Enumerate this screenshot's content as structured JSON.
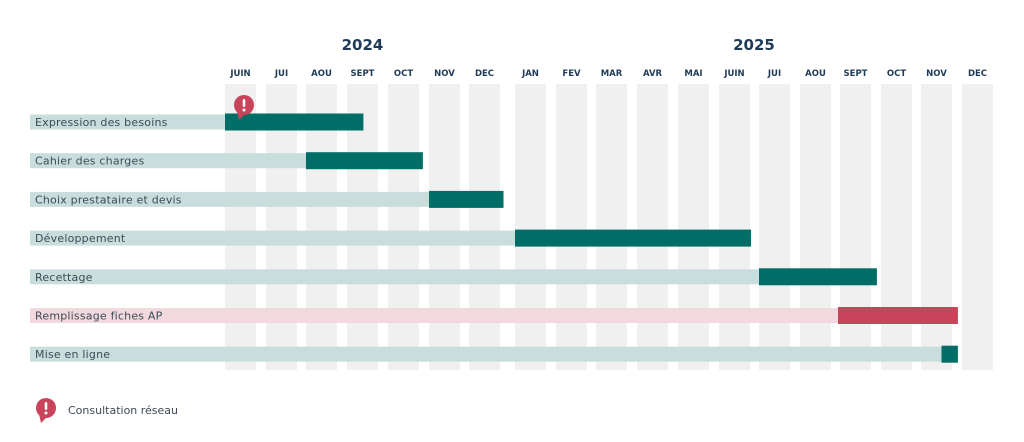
{
  "chart_data": {
    "type": "gantt",
    "years": [
      {
        "label": "2024",
        "start_month_index": 0,
        "span": 7
      },
      {
        "label": "2025",
        "start_month_index": 7,
        "span": 12
      }
    ],
    "months": [
      "JUIN",
      "JUI",
      "AOU",
      "SEPT",
      "OCT",
      "NOV",
      "DEC",
      "JAN",
      "FEV",
      "MAR",
      "AVR",
      "MAI",
      "JUIN",
      "JUI",
      "AOU",
      "SEPT",
      "OCT",
      "NOV",
      "DEC"
    ],
    "tasks": [
      {
        "label": "Expression des besoins",
        "start": 0.0,
        "end": 3.4,
        "color": "#006e66",
        "track": "#c8dedd",
        "marker": true
      },
      {
        "label": "Cahier des charges",
        "start": 2.0,
        "end": 4.85,
        "color": "#006e66",
        "track": "#c8dedd"
      },
      {
        "label": "Choix prestataire et devis",
        "start": 5.0,
        "end": 6.75,
        "color": "#006e66",
        "track": "#c8dedd"
      },
      {
        "label": "Développement",
        "start": 7.0,
        "end": 12.8,
        "color": "#006e66",
        "track": "#c8dedd"
      },
      {
        "label": "Recettage",
        "start": 13.0,
        "end": 15.9,
        "color": "#006e66",
        "track": "#c8dedd"
      },
      {
        "label": "Remplissage fiches AP",
        "start": 14.95,
        "end": 17.9,
        "color": "#c8445a",
        "track": "#f1d9dd"
      },
      {
        "label": "Mise en ligne",
        "start": 17.5,
        "end": 17.9,
        "color": "#006e66",
        "track": "#c8dedd"
      }
    ],
    "legend": {
      "label": "Consultation réseau",
      "icon": "alert-pin-icon",
      "color": "#c8445a"
    }
  }
}
